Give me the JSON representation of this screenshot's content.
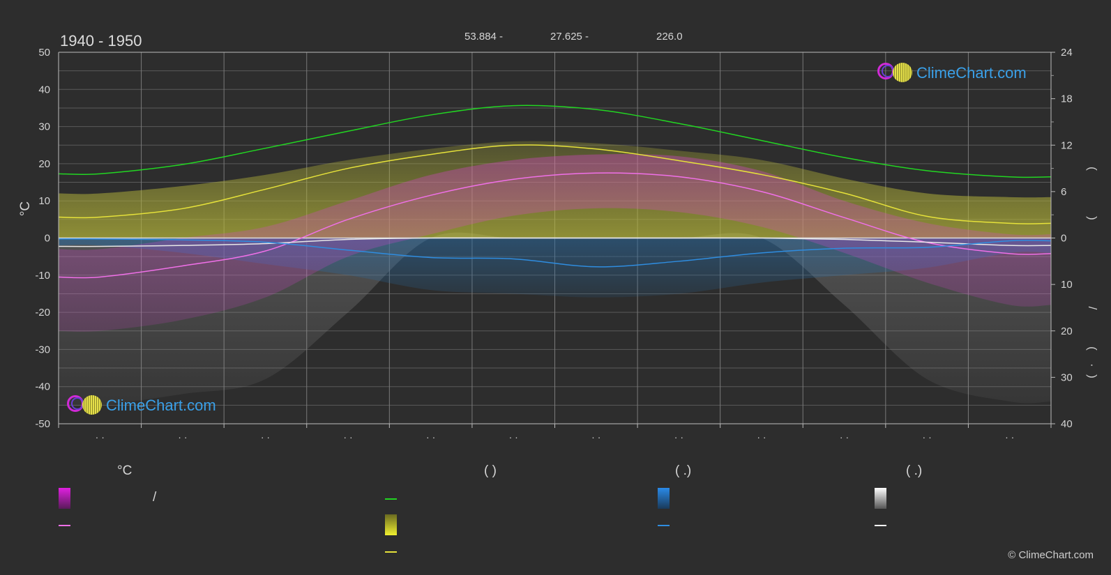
{
  "chart_data": {
    "type": "line",
    "title": "1940 - 1950",
    "header_values": [
      "53.884 -",
      "27.625 -",
      "226.0"
    ],
    "ylabel_left": "°C",
    "ylim_left": [
      -50,
      50
    ],
    "left_ticks": [
      50,
      40,
      30,
      20,
      10,
      0,
      -10,
      -20,
      -30,
      -40,
      -50
    ],
    "right_ticks_top": [
      24,
      18,
      12,
      6,
      0
    ],
    "right_ticks_bottom": [
      10,
      20,
      30,
      40
    ],
    "right_axis_glyphs": [
      "(",
      ")",
      "(",
      ")",
      "/",
      "(",
      "·",
      ")"
    ],
    "x_tick_labels": [
      "· ·",
      "· ·",
      "· ·",
      "· ·",
      "· ·",
      "· ·",
      "· ·",
      "· ·",
      "· ·",
      "· ·",
      "· ·",
      "· ·"
    ],
    "x_months": [
      0.5,
      1.5,
      2.5,
      3.5,
      4.5,
      5.5,
      6.5,
      7.5,
      8.5,
      9.5,
      10.5,
      11.5
    ],
    "grid": true,
    "series": [
      {
        "key": "daylight",
        "color": "#22d622",
        "axis": "right_hours",
        "values": [
          8.3,
          9.5,
          11.6,
          13.8,
          15.9,
          17.1,
          16.6,
          14.8,
          12.6,
          10.4,
          8.7,
          7.9
        ]
      },
      {
        "key": "sunshine",
        "color": "#e6e23a",
        "axis": "right_hours",
        "values": [
          2.7,
          3.8,
          6.3,
          9.0,
          10.8,
          12.0,
          11.5,
          10.0,
          8.2,
          5.8,
          2.8,
          1.9
        ]
      },
      {
        "key": "temp_max_avg",
        "color": "#f070e8",
        "axis": "left",
        "values": [
          -10.5,
          -7.5,
          -3.5,
          5.0,
          11.5,
          15.8,
          17.5,
          16.5,
          12.5,
          5.5,
          -1.2,
          -4.2
        ]
      },
      {
        "key": "snow_avg",
        "color": "#e8e8e8",
        "axis": "right_mm",
        "values": [
          1.8,
          1.6,
          1.2,
          0.3,
          0.0,
          0.0,
          0.0,
          0.0,
          0.0,
          0.3,
          0.9,
          1.6
        ]
      },
      {
        "key": "rain_avg",
        "color": "#2f8de0",
        "axis": "right_mm",
        "values": [
          0.2,
          0.4,
          0.9,
          2.6,
          4.2,
          4.5,
          6.2,
          5.0,
          3.2,
          2.2,
          2.0,
          0.6
        ]
      }
    ],
    "bands": {
      "sunshine_max": [
        12,
        14,
        17,
        21,
        24,
        26,
        25.5,
        23.5,
        21,
        16,
        12,
        11
      ],
      "temp_band_top": [
        -3,
        0,
        3,
        10,
        17,
        21,
        22.5,
        22,
        18,
        10,
        4,
        1
      ],
      "temp_band_bottom": [
        -25,
        -22,
        -16,
        -5,
        1,
        6,
        8,
        7,
        3,
        -4,
        -12,
        -18
      ],
      "snow_band": [
        -45,
        -42,
        -38,
        -20,
        0,
        0,
        0,
        0,
        0,
        -18,
        -38,
        -44
      ],
      "rain_band": [
        -2,
        -4,
        -7,
        -10,
        -14,
        -15,
        -16,
        -15,
        -12,
        -10,
        -8,
        -4
      ]
    },
    "colors": {
      "background": "#2d2d2d",
      "grid": "#5a5a5a",
      "grid_major": "#7a7a7a",
      "temperature": "#e040e0",
      "sunshine_band": "#a8a830",
      "rain_band": "#2a6aa0",
      "snow_band": "#8a8a8a"
    }
  },
  "legend": {
    "temp_head": "°C",
    "temp_slash": "/",
    "sun_head": "(          )",
    "rain_head": "(    .)",
    "snow_head": "(    .)"
  },
  "brand": "ClimeChart.com",
  "copyright": "© ClimeChart.com"
}
